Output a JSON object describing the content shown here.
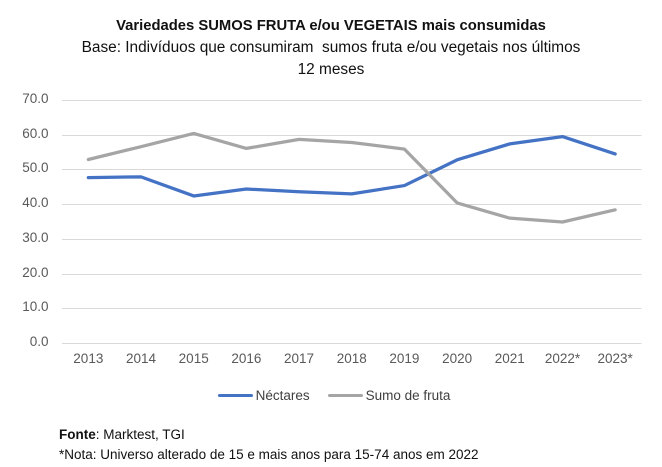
{
  "title": {
    "line1": "Variedades SUMOS FRUTA e/ou VEGETAIS mais consumidas",
    "line2": "Base: Indivíduos que consumiram  sumos fruta e/ou vegetais nos últimos",
    "line3": "12 meses"
  },
  "chart_data": {
    "type": "line",
    "title": "Variedades SUMOS FRUTA e/ou VEGETAIS mais consumidas",
    "subtitle": "Base: Indivíduos que consumiram  sumos fruta e/ou vegetais nos últimos 12 meses",
    "categories": [
      "2013",
      "2014",
      "2015",
      "2016",
      "2017",
      "2018",
      "2019",
      "2020",
      "2021",
      "2022*",
      "2023*"
    ],
    "series": [
      {
        "name": "Néctares",
        "color": "#4472C4",
        "values": [
          47.8,
          48.0,
          42.5,
          44.5,
          43.7,
          43.1,
          45.5,
          52.9,
          57.5,
          59.6,
          54.6
        ]
      },
      {
        "name": "Sumo de fruta",
        "color": "#A5A5A5",
        "values": [
          53.0,
          56.7,
          60.5,
          56.2,
          58.8,
          57.9,
          56.0,
          40.5,
          36.1,
          35.0,
          38.5
        ]
      }
    ],
    "xlabel": "",
    "ylabel": "",
    "ylim": [
      0,
      70
    ],
    "ytick_step": 10,
    "ytick_decimals": 1,
    "grid": true,
    "gridline_color": "#D9D9D9",
    "axis_label_color": "#595959",
    "legend_position": "bottom"
  },
  "legend": {
    "items": [
      {
        "label": "Néctares",
        "color": "#4472C4"
      },
      {
        "label": "Sumo de fruta",
        "color": "#A5A5A5"
      }
    ]
  },
  "footer": {
    "source_label": "Fonte",
    "source_rest": ": Marktest, TGI",
    "note": "*Nota: Universo alterado de 15 e mais anos para 15-74 anos em 2022"
  }
}
